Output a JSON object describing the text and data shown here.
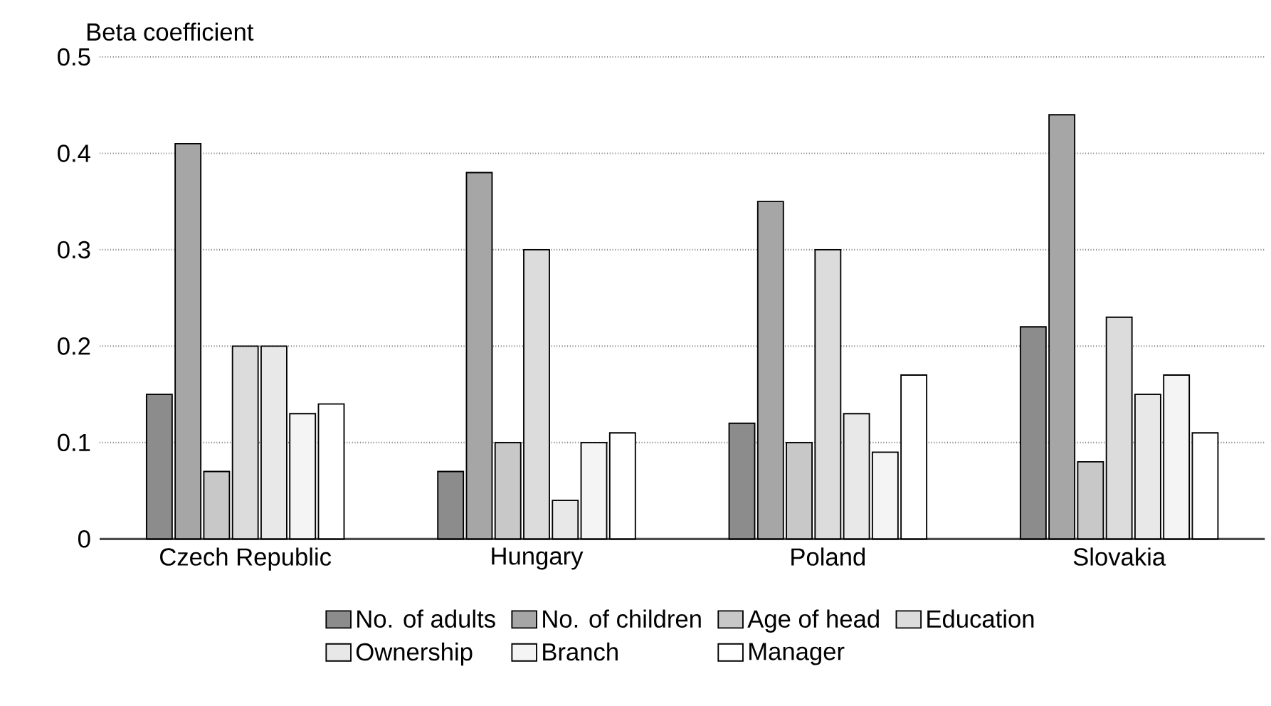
{
  "chart_data": {
    "type": "bar",
    "ylabel": "Beta coefficient",
    "categories": [
      "Czech Republic",
      "Hungary",
      "Poland",
      "Slovakia"
    ],
    "series": [
      {
        "name": "No. of adults",
        "color": "#8c8c8c",
        "values": [
          0.15,
          0.07,
          0.12,
          0.22
        ]
      },
      {
        "name": "No. of children",
        "color": "#a6a6a6",
        "values": [
          0.41,
          0.38,
          0.35,
          0.44
        ]
      },
      {
        "name": "Age of head",
        "color": "#c8c8c8",
        "values": [
          0.07,
          0.1,
          0.1,
          0.08
        ]
      },
      {
        "name": "Education",
        "color": "#dcdcdc",
        "values": [
          0.2,
          0.3,
          0.3,
          0.23
        ]
      },
      {
        "name": "Ownership",
        "color": "#e8e8e8",
        "values": [
          0.2,
          0.04,
          0.13,
          0.15
        ]
      },
      {
        "name": "Branch",
        "color": "#f4f4f4",
        "values": [
          0.13,
          0.1,
          0.09,
          0.17
        ]
      },
      {
        "name": "Manager",
        "color": "#ffffff",
        "values": [
          0.14,
          0.11,
          0.17,
          0.11
        ]
      }
    ],
    "ylim": [
      0,
      0.5
    ],
    "yticks": [
      0,
      0.1,
      0.2,
      0.3,
      0.4,
      0.5
    ],
    "grid": "y",
    "legend": "bottom"
  }
}
